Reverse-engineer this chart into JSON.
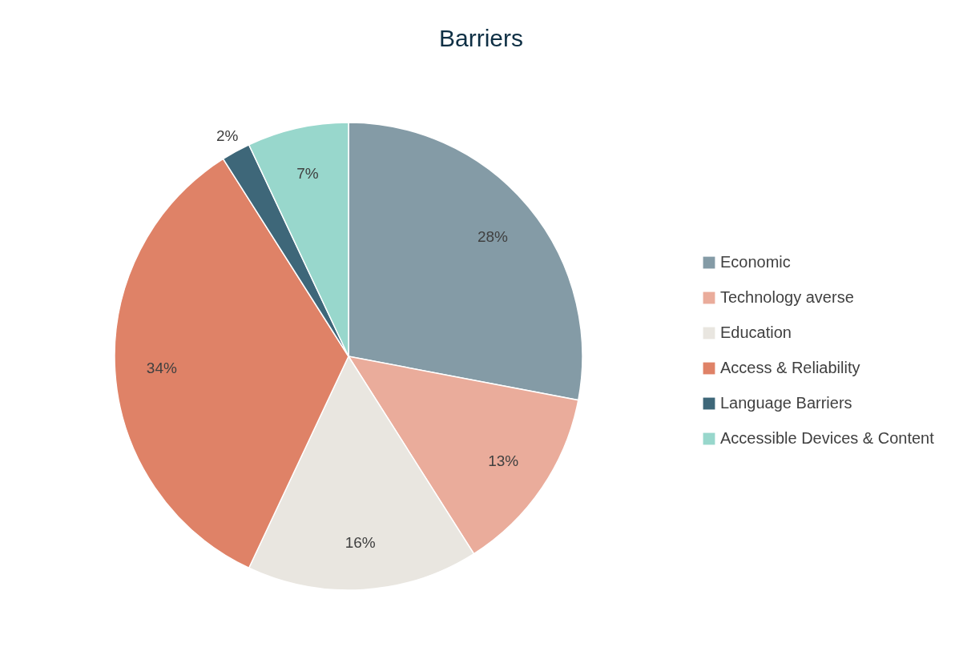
{
  "chart_data": {
    "type": "pie",
    "title": "Barriers",
    "categories": [
      "Economic",
      "Technology averse",
      "Education",
      "Access & Reliability",
      "Language Barriers",
      "Accessible Devices & Content"
    ],
    "values": [
      28,
      13,
      16,
      34,
      2,
      7
    ],
    "colors": [
      "#849ba6",
      "#eaac9b",
      "#e9e6e0",
      "#df8267",
      "#3e6779",
      "#98d7cc"
    ],
    "value_labels": [
      "28%",
      "13%",
      "16%",
      "34%",
      "2%",
      "7%"
    ],
    "legend": "right"
  }
}
